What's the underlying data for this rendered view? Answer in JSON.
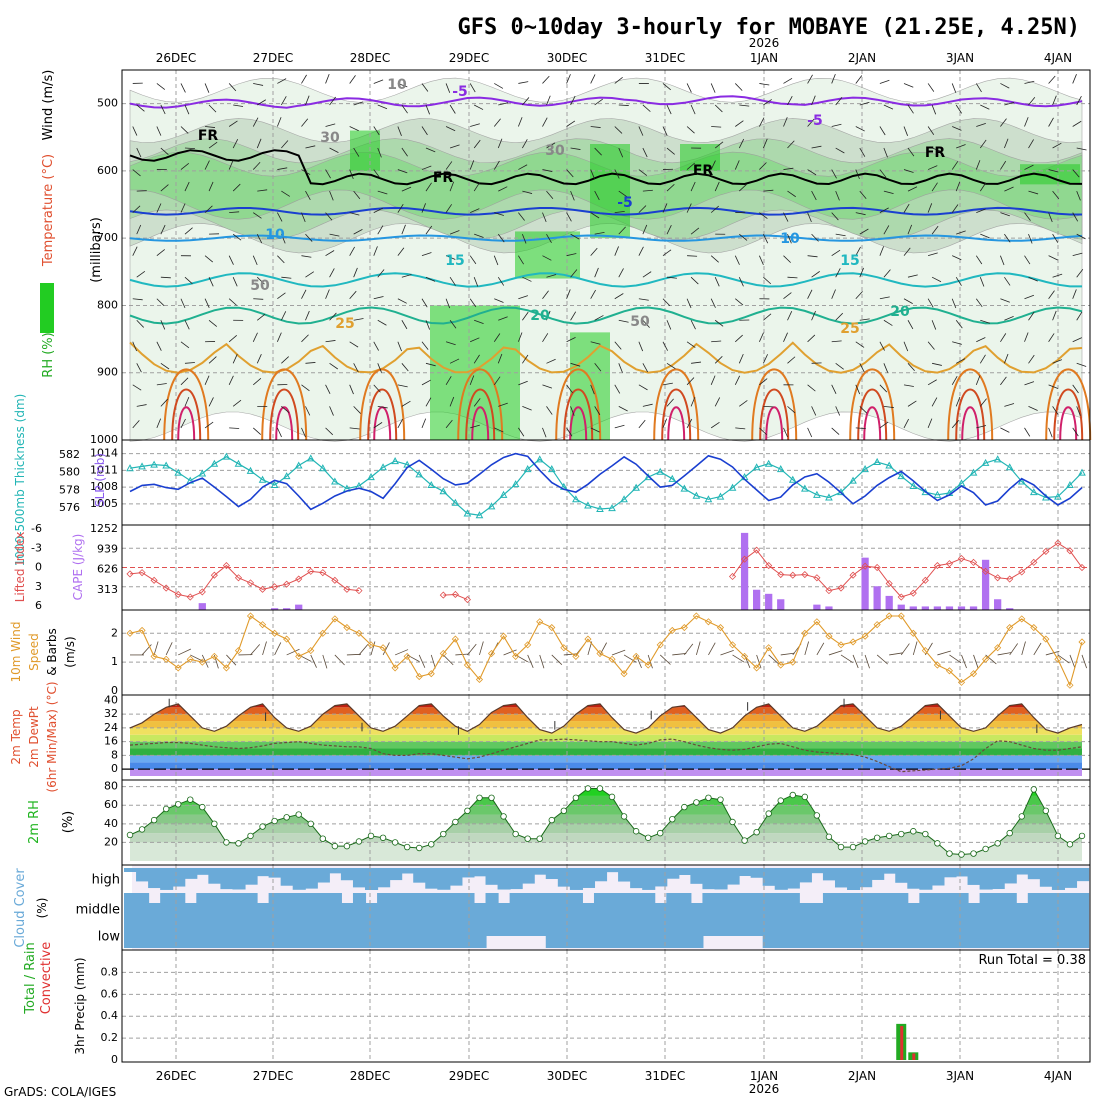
{
  "title": "GFS 0~10day 3-hourly for MOBAYE (21.25E, 4.25N)",
  "credit": "GrADS: COLA/IGES",
  "time_axis": {
    "labels": [
      "26DEC",
      "27DEC",
      "28DEC",
      "29DEC",
      "30DEC",
      "31DEC",
      "1JAN",
      "2JAN",
      "3JAN",
      "4JAN"
    ],
    "year_label": "2026",
    "year_under": "1JAN"
  },
  "colors": {
    "rh_green": "#22cc22",
    "thickness": "#22b5b5",
    "slp": "#1a3fd0",
    "lifted": "#e05050",
    "cape": "#b070f0",
    "wind": "#e09a2a",
    "rh2m": "#22b522",
    "cloud": "#6aaad8",
    "precip_total": "#22aa22",
    "precip_conv": "#e03030"
  },
  "chart_data": [
    {
      "type": "heatmap",
      "name": "upper-air-cross-section",
      "ylabel_parts": [
        "RH (%)",
        "Temperature (°C)",
        "Wind (m/s)"
      ],
      "yunit": "(millibars)",
      "ylim": [
        1000,
        450
      ],
      "yticks": [
        "500",
        "600",
        "700",
        "800",
        "900",
        "1000"
      ],
      "contour_labels": [
        "-5",
        "-5",
        "FR",
        "FR",
        "FR",
        "FR",
        "-5",
        "10",
        "10",
        "15",
        "15",
        "20",
        "20",
        "25",
        "25",
        "10",
        "30",
        "50",
        "50",
        "30"
      ],
      "isotherms_mb": {
        "minus5_upper": [
          500,
          498,
          497,
          495,
          497,
          498
        ],
        "minus5_lower": 660,
        "plus10": 700,
        "plus15": 762,
        "plus20": 815,
        "plus25": 855
      }
    },
    {
      "type": "line",
      "name": "thickness-slp",
      "ylabel_left": "1000-500mb Thickness (dm)",
      "ylabel_right": "SLP (mb)",
      "thickness_ticks": [
        "582",
        "580",
        "578",
        "576"
      ],
      "slp_ticks": [
        "1014",
        "1011",
        "1008",
        "1005"
      ],
      "thickness_dm": [
        580.5,
        580.7,
        580.9,
        580.8,
        580.0,
        579.1,
        579.9,
        581.0,
        581.8,
        581.0,
        580.2,
        579.2,
        578.6,
        579.6,
        580.8,
        581.6,
        580.5,
        579.0,
        578.2,
        578.5,
        579.5,
        580.6,
        581.3,
        580.9,
        579.8,
        578.6,
        577.9,
        576.6,
        575.4,
        575.2,
        576.2,
        577.5,
        578.7,
        580.4,
        581.5,
        580.4,
        578.4,
        577.0,
        576.3,
        575.9,
        576.0,
        577.0,
        578.3,
        579.5,
        580.1,
        579.3,
        578.2,
        577.4,
        577.0,
        577.3,
        578.3,
        579.5,
        580.6,
        581.0,
        580.4,
        579.2,
        578.2,
        577.5,
        577.2,
        577.8,
        579.1,
        580.4,
        581.2,
        580.8,
        579.6,
        578.5,
        577.8,
        577.5,
        577.7,
        578.8,
        580.0,
        581.1,
        581.5,
        580.6,
        579.0,
        577.8,
        577.2,
        577.3,
        578.6,
        580.0
      ],
      "slp_mb": [
        1007.2,
        1008.3,
        1008.5,
        1007.9,
        1007.6,
        1008.8,
        1009.6,
        1008.0,
        1006.3,
        1004.5,
        1005.8,
        1008.0,
        1009.2,
        1008.6,
        1006.4,
        1004.0,
        1005.1,
        1006.4,
        1007.3,
        1007.8,
        1007.2,
        1006.0,
        1008.6,
        1011.5,
        1012.8,
        1011.2,
        1009.5,
        1008.4,
        1008.7,
        1010.3,
        1012.0,
        1013.3,
        1014.0,
        1013.5,
        1011.0,
        1008.8,
        1007.6,
        1007.1,
        1008.5,
        1010.3,
        1011.8,
        1013.4,
        1012.1,
        1010.0,
        1008.0,
        1008.3,
        1010.0,
        1011.8,
        1013.6,
        1013.0,
        1011.6,
        1009.4,
        1007.5,
        1005.6,
        1006.2,
        1008.4,
        1009.8,
        1010.4,
        1008.9,
        1007.0,
        1005.0,
        1006.4,
        1008.3,
        1009.7,
        1010.8,
        1009.1,
        1007.2,
        1005.6,
        1006.6,
        1008.2,
        1007.0,
        1004.8,
        1005.5,
        1007.7,
        1009.5,
        1008.4,
        1006.4,
        1004.8,
        1006.0,
        1007.9
      ]
    },
    {
      "type": "bar",
      "name": "lifted-index-cape",
      "ylabel_left": "Lifted Index",
      "ylabel_right": "CAPE (J/kg)",
      "li_ticks": [
        "-6",
        "-3",
        "0",
        "3",
        "6"
      ],
      "cape_ticks": [
        "1252",
        "939",
        "626",
        "313"
      ],
      "lifted_index": [
        1.0,
        0.8,
        2.0,
        3.2,
        4.2,
        4.6,
        3.8,
        1.2,
        -0.3,
        1.6,
        2.4,
        3.4,
        3.0,
        2.6,
        1.8,
        0.6,
        0.8,
        2.0,
        3.4,
        3.6,
        null,
        null,
        null,
        null,
        null,
        null,
        4.3,
        4.2,
        5.0,
        null,
        null,
        null,
        null,
        null,
        null,
        null,
        null,
        null,
        null,
        null,
        null,
        null,
        null,
        null,
        null,
        null,
        null,
        null,
        null,
        null,
        1.4,
        -1.3,
        -2.7,
        -0.3,
        1.1,
        1.2,
        1.1,
        1.6,
        3.6,
        3.2,
        1.2,
        -0.2,
        0.0,
        2.5,
        4.6,
        4.0,
        2.0,
        -0.3,
        -0.6,
        -1.4,
        -0.8,
        0.6,
        1.6,
        1.8,
        0.7,
        -0.8,
        -2.5,
        -3.8,
        -2.6,
        0.0
      ],
      "cape": [
        0,
        0,
        0,
        0,
        0,
        0,
        106,
        0,
        0,
        0,
        0,
        0,
        28,
        28,
        83,
        0,
        0,
        0,
        0,
        0,
        0,
        0,
        0,
        0,
        0,
        0,
        0,
        0,
        0,
        0,
        0,
        0,
        0,
        0,
        0,
        0,
        0,
        0,
        0,
        0,
        0,
        0,
        0,
        0,
        0,
        0,
        0,
        0,
        0,
        0,
        0,
        1192,
        313,
        250,
        166,
        0,
        0,
        83,
        55,
        0,
        0,
        809,
        367,
        218,
        83,
        55,
        55,
        55,
        55,
        55,
        55,
        776,
        166,
        28,
        0,
        0,
        0,
        0,
        0,
        0
      ]
    },
    {
      "type": "line",
      "name": "wind-10m",
      "ylabel_parts": [
        "10m Wind",
        "Speed",
        "& Barbs",
        "(m/s)"
      ],
      "yticks": [
        "2",
        "1",
        "0"
      ],
      "ylim": [
        0,
        2.6
      ],
      "wind_speed": [
        2.0,
        2.1,
        1.2,
        1.1,
        0.8,
        1.1,
        1.0,
        1.2,
        0.8,
        1.4,
        2.6,
        2.3,
        2.0,
        1.8,
        1.2,
        1.4,
        2.0,
        2.5,
        2.2,
        2.0,
        1.6,
        1.5,
        0.8,
        1.2,
        0.5,
        0.6,
        1.3,
        1.8,
        0.9,
        0.4,
        1.3,
        1.9,
        1.2,
        1.6,
        2.4,
        2.2,
        1.5,
        1.2,
        1.8,
        1.3,
        1.1,
        0.6,
        1.2,
        0.9,
        1.6,
        2.1,
        2.2,
        2.6,
        2.4,
        2.2,
        1.6,
        1.2,
        0.8,
        1.5,
        0.9,
        1.0,
        2.0,
        2.4,
        1.9,
        1.6,
        1.7,
        1.9,
        2.3,
        2.6,
        2.6,
        2.0,
        1.4,
        0.9,
        0.7,
        0.3,
        0.6,
        1.1,
        1.5,
        2.2,
        2.5,
        2.2,
        1.8,
        1.1,
        0.2,
        1.7
      ]
    },
    {
      "type": "area",
      "name": "temperature-dewpoint",
      "ylabel_parts": [
        "2m Temp",
        "2m DewPt",
        "(6hr Min/Max) (°C)"
      ],
      "yticks": [
        "40",
        "32",
        "24",
        "16",
        "8",
        "0"
      ],
      "temp": [
        24,
        27,
        32,
        36,
        38,
        31,
        24,
        22,
        25,
        31,
        36,
        38,
        30,
        24,
        22,
        25,
        32,
        37,
        38,
        31,
        24,
        22,
        25,
        31,
        37,
        38,
        31,
        25,
        22,
        26,
        33,
        37,
        38,
        30,
        23,
        21,
        25,
        32,
        37,
        38,
        30,
        23,
        21,
        24,
        31,
        36,
        37,
        30,
        23,
        21,
        24,
        31,
        36,
        38,
        31,
        24,
        22,
        25,
        31,
        37,
        38,
        31,
        24,
        22,
        25,
        31,
        37,
        38,
        31,
        24,
        22,
        24,
        31,
        37,
        38,
        30,
        23,
        21,
        24,
        26
      ],
      "dewpoint": [
        14,
        14.5,
        15,
        15.5,
        15.5,
        15,
        14,
        13,
        12.5,
        12,
        12.5,
        13.5,
        15,
        15.5,
        16,
        15,
        14,
        13.5,
        13,
        13,
        12,
        9,
        8,
        8,
        9,
        9,
        8,
        7,
        6,
        7,
        9,
        11,
        13,
        15,
        17,
        17,
        17.5,
        17,
        16.5,
        16,
        16,
        15,
        14,
        15,
        17,
        17.5,
        16,
        14,
        12.5,
        11.5,
        11,
        11.5,
        13,
        14.5,
        15,
        13,
        11,
        10,
        9.5,
        9,
        8.5,
        7,
        4.5,
        1.5,
        -1.5,
        -1,
        -0.5,
        0,
        0.5,
        2,
        6,
        12,
        16.5,
        16,
        14,
        12,
        11,
        11,
        12,
        13
      ]
    },
    {
      "type": "area",
      "name": "relative-humidity-2m",
      "ylabel": "2m RH (%)",
      "yticks": [
        "80",
        "60",
        "40",
        "20"
      ],
      "ylim": [
        0,
        85
      ],
      "rh": [
        28,
        34,
        44,
        56,
        61,
        66,
        58,
        40,
        20,
        19,
        27,
        37,
        43,
        47,
        50,
        40,
        24,
        16,
        16,
        21,
        27,
        25,
        20,
        15,
        14,
        18,
        29,
        42,
        54,
        68,
        68,
        48,
        29,
        24,
        24,
        44,
        54,
        68,
        78,
        78,
        69,
        48,
        32,
        25,
        30,
        45,
        58,
        63,
        68,
        66,
        42,
        22,
        31,
        51,
        65,
        71,
        69,
        49,
        26,
        15,
        15,
        21,
        25,
        27,
        29,
        32,
        29,
        19,
        8,
        7,
        8,
        13,
        19,
        30,
        48,
        77,
        54,
        27,
        18,
        27
      ]
    },
    {
      "type": "table",
      "name": "cloud-cover",
      "ylabel": "Cloud Cover (%)",
      "levels": [
        "high",
        "middle",
        "low"
      ],
      "note": "3-hourly cloud fraction by level; high level shows broken cover, middle and low mostly overcast"
    },
    {
      "type": "bar",
      "name": "precipitation-3hr",
      "ylabel_parts": [
        "Total / Rain",
        "Convective"
      ],
      "ylabel_right": "3hr Precip (mm)",
      "yticks": [
        "0.8",
        "0.6",
        "0.4",
        "0.2",
        "0"
      ],
      "ylim": [
        0,
        0.95
      ],
      "run_total_label": "Run Total = 0.38",
      "total": [
        0,
        0,
        0,
        0,
        0,
        0,
        0,
        0,
        0,
        0,
        0,
        0,
        0,
        0,
        0,
        0,
        0,
        0,
        0,
        0,
        0,
        0,
        0,
        0,
        0,
        0,
        0,
        0,
        0,
        0,
        0,
        0,
        0,
        0,
        0,
        0,
        0,
        0,
        0,
        0,
        0,
        0,
        0,
        0,
        0,
        0,
        0,
        0,
        0,
        0,
        0,
        0,
        0,
        0,
        0,
        0,
        0,
        0,
        0,
        0,
        0,
        0,
        0,
        0,
        0.33,
        0.07,
        0,
        0,
        0,
        0,
        0,
        0,
        0,
        0,
        0,
        0,
        0,
        0,
        0,
        0
      ],
      "convective": [
        0,
        0,
        0,
        0,
        0,
        0,
        0,
        0,
        0,
        0,
        0,
        0,
        0,
        0,
        0,
        0,
        0,
        0,
        0,
        0,
        0,
        0,
        0,
        0,
        0,
        0,
        0,
        0,
        0,
        0,
        0,
        0,
        0,
        0,
        0,
        0,
        0,
        0,
        0,
        0,
        0,
        0,
        0,
        0,
        0,
        0,
        0,
        0,
        0,
        0,
        0,
        0,
        0,
        0,
        0,
        0,
        0,
        0,
        0,
        0,
        0,
        0,
        0,
        0,
        0.31,
        0.06,
        0,
        0,
        0,
        0,
        0,
        0,
        0,
        0,
        0,
        0,
        0,
        0,
        0,
        0
      ]
    }
  ]
}
